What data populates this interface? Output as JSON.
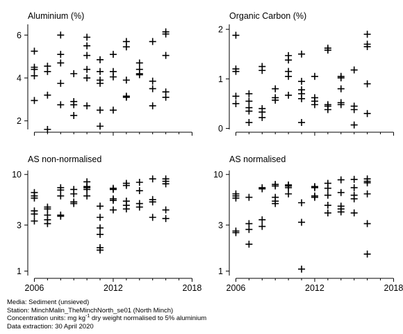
{
  "chart_data": [
    {
      "type": "scatter",
      "title": "Aluminium (%)",
      "scale": "linear",
      "ylim": [
        1.6,
        6.5
      ],
      "yticks": [
        2,
        4,
        6
      ],
      "ytick_labels": [
        "2",
        "4",
        "6"
      ],
      "xlim": [
        2005.5,
        2018.4
      ],
      "xticks": [
        2006,
        2012,
        2018
      ],
      "xtick_labels": [
        "2006",
        "2012",
        "2018"
      ],
      "show_xtick_labels": false,
      "grid": false,
      "points": [
        [
          2006,
          5.25
        ],
        [
          2006,
          4.5
        ],
        [
          2006,
          4.4
        ],
        [
          2006,
          4.1
        ],
        [
          2006,
          2.95
        ],
        [
          2007,
          4.55
        ],
        [
          2007,
          4.3
        ],
        [
          2007,
          3.2
        ],
        [
          2007,
          1.6
        ],
        [
          2008,
          6.0
        ],
        [
          2008,
          5.1
        ],
        [
          2008,
          4.7
        ],
        [
          2008,
          3.75
        ],
        [
          2008,
          2.75
        ],
        [
          2009,
          4.2
        ],
        [
          2009,
          2.9
        ],
        [
          2009,
          2.75
        ],
        [
          2009,
          2.25
        ],
        [
          2010,
          5.9
        ],
        [
          2010,
          5.5
        ],
        [
          2010,
          5.05
        ],
        [
          2010,
          4.4
        ],
        [
          2010,
          4.0
        ],
        [
          2010,
          2.7
        ],
        [
          2011,
          4.85
        ],
        [
          2011,
          4.3
        ],
        [
          2011,
          3.9
        ],
        [
          2011,
          3.75
        ],
        [
          2011,
          2.5
        ],
        [
          2011,
          1.75
        ],
        [
          2012,
          5.1
        ],
        [
          2012,
          4.3
        ],
        [
          2012,
          4.05
        ],
        [
          2012,
          2.5
        ],
        [
          2013,
          5.7
        ],
        [
          2013,
          5.45
        ],
        [
          2013,
          3.9
        ],
        [
          2013,
          3.15
        ],
        [
          2013,
          3.1
        ],
        [
          2014,
          4.7
        ],
        [
          2014,
          4.4
        ],
        [
          2014,
          4.2
        ],
        [
          2014,
          4.15
        ],
        [
          2015,
          5.7
        ],
        [
          2015,
          3.85
        ],
        [
          2015,
          3.5
        ],
        [
          2015,
          2.7
        ],
        [
          2016,
          6.15
        ],
        [
          2016,
          6.05
        ],
        [
          2016,
          5.05
        ],
        [
          2016,
          3.35
        ],
        [
          2016,
          3.1
        ]
      ]
    },
    {
      "type": "scatter",
      "title": "Organic Carbon (%)",
      "scale": "linear",
      "ylim": [
        -0.02,
        2.1
      ],
      "yticks": [
        0,
        1,
        2
      ],
      "ytick_labels": [
        "0",
        "1",
        "2"
      ],
      "xlim": [
        2005.5,
        2018.4
      ],
      "xticks": [
        2006,
        2012,
        2018
      ],
      "xtick_labels": [
        "2006",
        "2012",
        "2018"
      ],
      "show_xtick_labels": false,
      "grid": false,
      "points": [
        [
          2006,
          1.88
        ],
        [
          2006,
          1.2
        ],
        [
          2006,
          1.15
        ],
        [
          2006,
          0.65
        ],
        [
          2006,
          0.5
        ],
        [
          2007,
          0.7
        ],
        [
          2007,
          0.55
        ],
        [
          2007,
          0.42
        ],
        [
          2007,
          0.35
        ],
        [
          2007,
          0.12
        ],
        [
          2008,
          1.25
        ],
        [
          2008,
          1.17
        ],
        [
          2008,
          0.4
        ],
        [
          2008,
          0.33
        ],
        [
          2008,
          0.22
        ],
        [
          2009,
          0.8
        ],
        [
          2009,
          0.62
        ],
        [
          2009,
          0.57
        ],
        [
          2010,
          1.47
        ],
        [
          2010,
          1.38
        ],
        [
          2010,
          1.15
        ],
        [
          2010,
          1.05
        ],
        [
          2010,
          0.67
        ],
        [
          2011,
          1.5
        ],
        [
          2011,
          0.95
        ],
        [
          2011,
          0.78
        ],
        [
          2011,
          0.7
        ],
        [
          2011,
          0.6
        ],
        [
          2011,
          0.12
        ],
        [
          2012,
          1.05
        ],
        [
          2012,
          0.62
        ],
        [
          2012,
          0.55
        ],
        [
          2012,
          0.48
        ],
        [
          2013,
          1.62
        ],
        [
          2013,
          1.58
        ],
        [
          2013,
          0.48
        ],
        [
          2013,
          0.45
        ],
        [
          2013,
          0.38
        ],
        [
          2014,
          1.05
        ],
        [
          2014,
          1.02
        ],
        [
          2014,
          0.8
        ],
        [
          2014,
          0.52
        ],
        [
          2014,
          0.48
        ],
        [
          2015,
          1.18
        ],
        [
          2015,
          0.45
        ],
        [
          2015,
          0.38
        ],
        [
          2015,
          0.07
        ],
        [
          2016,
          1.9
        ],
        [
          2016,
          1.7
        ],
        [
          2016,
          1.65
        ],
        [
          2016,
          0.9
        ],
        [
          2016,
          0.3
        ]
      ]
    },
    {
      "type": "scatter",
      "title": "AS non-normalised",
      "scale": "log",
      "ylim": [
        0.9,
        11.0
      ],
      "yticks": [
        1,
        3,
        10
      ],
      "ytick_labels": [
        "1",
        "3",
        "10"
      ],
      "xlim": [
        2005.5,
        2018.4
      ],
      "xticks": [
        2006,
        2012,
        2018
      ],
      "xtick_labels": [
        "2006",
        "2012",
        "2018"
      ],
      "show_xtick_labels": true,
      "grid": false,
      "points": [
        [
          2006,
          6.5
        ],
        [
          2006,
          6.0
        ],
        [
          2006,
          5.7
        ],
        [
          2006,
          4.2
        ],
        [
          2006,
          3.9
        ],
        [
          2006,
          3.3
        ],
        [
          2007,
          4.6
        ],
        [
          2007,
          4.4
        ],
        [
          2007,
          3.8
        ],
        [
          2007,
          3.4
        ],
        [
          2007,
          3.1
        ],
        [
          2008,
          7.3
        ],
        [
          2008,
          6.9
        ],
        [
          2008,
          6.0
        ],
        [
          2008,
          3.8
        ],
        [
          2008,
          3.7
        ],
        [
          2009,
          7.0
        ],
        [
          2009,
          6.3
        ],
        [
          2009,
          5.2
        ],
        [
          2009,
          5.0
        ],
        [
          2010,
          8.4
        ],
        [
          2010,
          7.5
        ],
        [
          2010,
          7.3
        ],
        [
          2010,
          7.0
        ],
        [
          2010,
          6.0
        ],
        [
          2011,
          4.7
        ],
        [
          2011,
          3.6
        ],
        [
          2011,
          2.8
        ],
        [
          2011,
          2.4
        ],
        [
          2011,
          1.75
        ],
        [
          2011,
          1.65
        ],
        [
          2012,
          7.2
        ],
        [
          2012,
          7.0
        ],
        [
          2012,
          5.6
        ],
        [
          2012,
          5.4
        ],
        [
          2012,
          4.3
        ],
        [
          2013,
          8.1
        ],
        [
          2013,
          7.7
        ],
        [
          2013,
          5.3
        ],
        [
          2013,
          4.8
        ],
        [
          2013,
          4.4
        ],
        [
          2014,
          8.3
        ],
        [
          2014,
          6.8
        ],
        [
          2014,
          5.0
        ],
        [
          2014,
          4.6
        ],
        [
          2015,
          9.0
        ],
        [
          2015,
          5.5
        ],
        [
          2015,
          5.2
        ],
        [
          2015,
          3.6
        ],
        [
          2016,
          9.0
        ],
        [
          2016,
          8.5
        ],
        [
          2016,
          8.0
        ],
        [
          2016,
          4.3
        ],
        [
          2016,
          3.5
        ]
      ]
    },
    {
      "type": "scatter",
      "title": "AS normalised",
      "scale": "log",
      "ylim": [
        0.9,
        11.0
      ],
      "yticks": [
        1,
        3,
        10
      ],
      "ytick_labels": [
        "1",
        "3",
        "10"
      ],
      "xlim": [
        2005.5,
        2018.4
      ],
      "xticks": [
        2006,
        2012,
        2018
      ],
      "xtick_labels": [
        "2006",
        "2012",
        "2018"
      ],
      "show_xtick_labels": true,
      "grid": false,
      "points": [
        [
          2006,
          6.3
        ],
        [
          2006,
          6.0
        ],
        [
          2006,
          5.7
        ],
        [
          2006,
          2.6
        ],
        [
          2006,
          2.5
        ],
        [
          2007,
          5.8
        ],
        [
          2007,
          3.1
        ],
        [
          2007,
          2.7
        ],
        [
          2007,
          1.9
        ],
        [
          2008,
          7.3
        ],
        [
          2008,
          7.1
        ],
        [
          2008,
          3.4
        ],
        [
          2008,
          2.9
        ],
        [
          2009,
          7.9
        ],
        [
          2009,
          7.6
        ],
        [
          2009,
          5.8
        ],
        [
          2009,
          5.3
        ],
        [
          2009,
          5.0
        ],
        [
          2010,
          7.8
        ],
        [
          2010,
          7.6
        ],
        [
          2010,
          7.3
        ],
        [
          2010,
          6.3
        ],
        [
          2011,
          5.1
        ],
        [
          2011,
          3.2
        ],
        [
          2011,
          1.05
        ],
        [
          2012,
          7.5
        ],
        [
          2012,
          7.3
        ],
        [
          2012,
          6.0
        ],
        [
          2012,
          5.8
        ],
        [
          2013,
          8.1
        ],
        [
          2013,
          7.2
        ],
        [
          2013,
          6.1
        ],
        [
          2013,
          4.8
        ],
        [
          2013,
          4.0
        ],
        [
          2014,
          8.8
        ],
        [
          2014,
          6.5
        ],
        [
          2014,
          4.7
        ],
        [
          2014,
          4.4
        ],
        [
          2014,
          4.1
        ],
        [
          2015,
          8.9
        ],
        [
          2015,
          7.3
        ],
        [
          2015,
          6.1
        ],
        [
          2015,
          5.6
        ],
        [
          2015,
          4.0
        ],
        [
          2016,
          9.0
        ],
        [
          2016,
          8.5
        ],
        [
          2016,
          8.2
        ],
        [
          2016,
          6.3
        ],
        [
          2016,
          3.1
        ],
        [
          2016,
          1.5
        ]
      ]
    }
  ],
  "footer": {
    "media": "Media: Sediment (unsieved)",
    "station": "Station: MinchMalin_TheMinchNorth_se01 (North Minch)",
    "units_prefix": "Concentration units:  mg kg",
    "units_exponent": "-1",
    "units_suffix": " dry weight normalised to 5% aluminium",
    "extraction": "Data extraction: 30 April 2020"
  }
}
